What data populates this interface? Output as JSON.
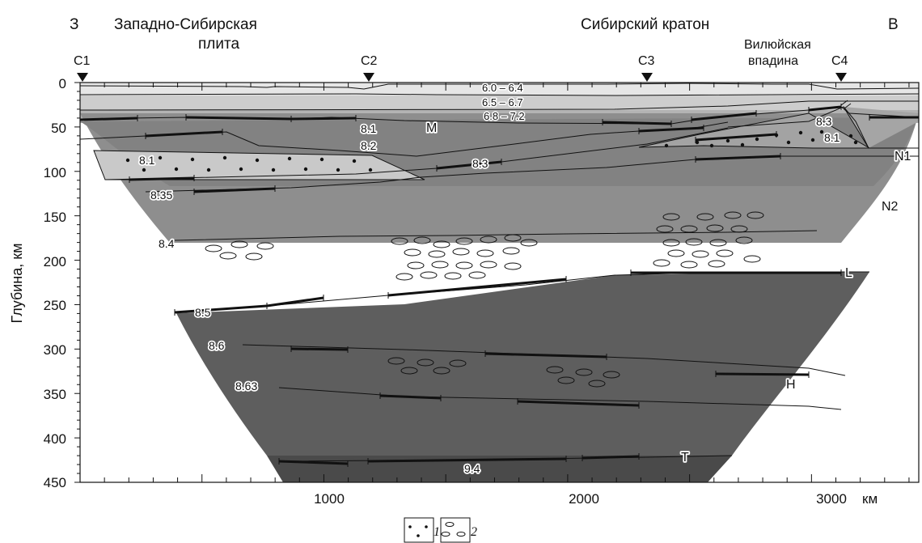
{
  "header": {
    "west_letter": "З",
    "east_letter": "В",
    "west_region_line1": "Западно-Сибирская",
    "west_region_line2": "плита",
    "craton": "Сибирский кратон",
    "depression_line1": "Вилюйская",
    "depression_line2": "впадина"
  },
  "stations": [
    {
      "label": "С1",
      "x_km": 10
    },
    {
      "label": "С2",
      "x_km": 1100
    },
    {
      "label": "С3",
      "x_km": 2270
    },
    {
      "label": "С4",
      "x_km": 3040
    }
  ],
  "axes": {
    "ylabel": "Глубина, км",
    "y_range": [
      0,
      450
    ],
    "y_ticks": [
      "0",
      "50",
      "100",
      "150",
      "200",
      "250",
      "300",
      "350",
      "400",
      "450"
    ],
    "x_range": [
      0,
      3440
    ],
    "x_ticks": [
      "1000",
      "2000",
      "3000"
    ],
    "x_unit": "км"
  },
  "velocities": {
    "crust_upper": "6.0 – 6.4",
    "crust_middle": "6.5 – 6.7",
    "crust_lower": "6.8 – 7.2",
    "v81_top": "8.1",
    "v82": "8.2",
    "v83_center": "8.3",
    "v83_east": "8.3",
    "v81_east": "8.1",
    "v81_lens": "8.1",
    "v835": "8.35",
    "v84": "8.4",
    "v85": "8.5",
    "v86": "8.6",
    "v863": "8.63",
    "v94": "9.4"
  },
  "boundaries": {
    "moho": "M",
    "n1": "N1",
    "n2": "N2",
    "l": "L",
    "h": "H",
    "t": "T"
  },
  "legend": {
    "item1": "1",
    "item2": "2"
  }
}
